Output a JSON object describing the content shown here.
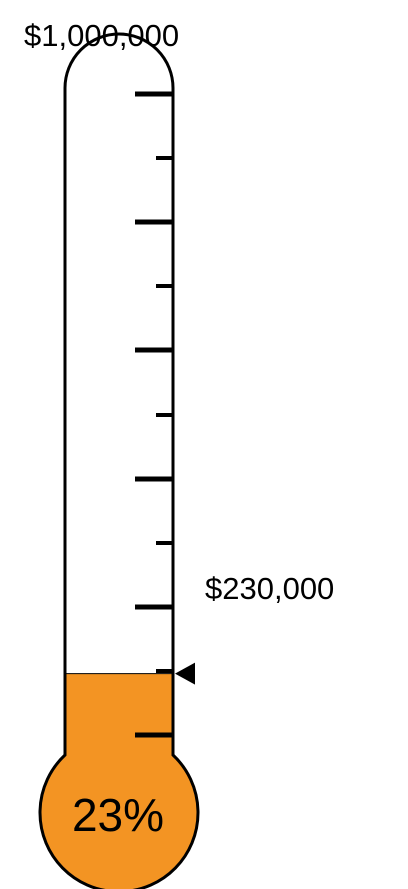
{
  "chart_data": {
    "type": "thermometer",
    "goal": 1000000,
    "goal_label": "$1,000,000",
    "value": 230000,
    "value_label": "$230,000",
    "percent_label": "23%",
    "ylim": [
      0,
      1000000
    ],
    "major_ticks": 6,
    "minor_ticks": 5
  },
  "colors": {
    "fill": "#f39423",
    "outline": "#000000",
    "background": "#ffffff"
  }
}
